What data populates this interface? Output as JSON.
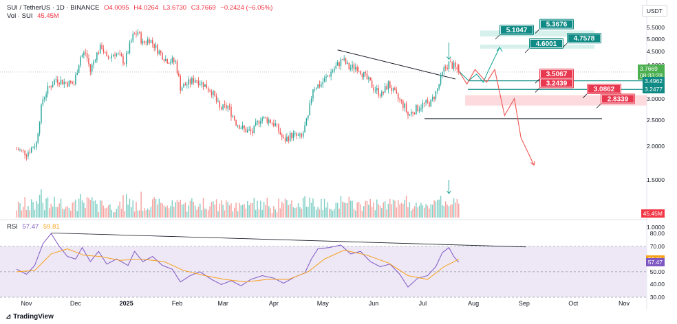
{
  "header": {
    "symbol": "SUI / TetherUS · 1D · BINANCE",
    "open": "O4.0095",
    "high": "H4.0264",
    "low": "L3.6730",
    "close": "C3.7669",
    "change": "−0.2424 (−6.05%)",
    "vol_label": "Vol · SUI",
    "vol_value": "45.45M"
  },
  "currency_button": "USDT",
  "rsi_header": {
    "label": "RSI",
    "rsi": "57.47",
    "ma": "59.81"
  },
  "branding": "TradingView",
  "colors": {
    "up": "#26a69a",
    "down": "#ef5350",
    "rsi": "#7e57c2",
    "rsi_ma": "#f7a21b",
    "target": "#0f8a84",
    "stop": "#e8384f"
  },
  "chart_data": [
    {
      "type": "candlestick",
      "title": "SUI / TetherUS · 1D · BINANCE",
      "y_scale": "log",
      "ylim": [
        1.2,
        6.2
      ],
      "y_ticks": [
        "5.5000",
        "5.0000",
        "4.5000",
        "4.0000",
        "3.5000",
        "3.0000",
        "2.5000",
        "2.0000",
        "1.5000",
        "1.0000"
      ],
      "x_ticks": [
        "Nov",
        "Dec",
        "2025",
        "Feb",
        "Mar",
        "Apr",
        "May",
        "Jun",
        "Jul",
        "Aug",
        "Sep",
        "Oct",
        "Nov"
      ],
      "last_price": "3.7669",
      "countdown": "08:33:28",
      "close_path": [
        [
          "2024-10-26",
          1.95
        ],
        [
          "2024-11-01",
          1.88
        ],
        [
          "2024-11-07",
          2.05
        ],
        [
          "2024-11-11",
          3.0
        ],
        [
          "2024-11-14",
          3.25
        ],
        [
          "2024-11-19",
          3.55
        ],
        [
          "2024-11-24",
          3.45
        ],
        [
          "2024-11-30",
          3.4
        ],
        [
          "2024-12-04",
          4.3
        ],
        [
          "2024-12-07",
          4.45
        ],
        [
          "2024-12-10",
          3.8
        ],
        [
          "2024-12-13",
          4.3
        ],
        [
          "2024-12-17",
          4.7
        ],
        [
          "2024-12-20",
          4.2
        ],
        [
          "2024-12-25",
          4.45
        ],
        [
          "2024-12-31",
          4.1
        ],
        [
          "2025-01-05",
          5.1
        ],
        [
          "2025-01-08",
          5.3
        ],
        [
          "2025-01-11",
          4.8
        ],
        [
          "2025-01-15",
          5.0
        ],
        [
          "2025-01-20",
          4.55
        ],
        [
          "2025-01-25",
          4.2
        ],
        [
          "2025-01-31",
          4.1
        ],
        [
          "2025-02-03",
          3.3
        ],
        [
          "2025-02-07",
          3.4
        ],
        [
          "2025-02-12",
          3.55
        ],
        [
          "2025-02-17",
          3.4
        ],
        [
          "2025-02-22",
          3.2
        ],
        [
          "2025-02-27",
          2.75
        ],
        [
          "2025-03-04",
          2.8
        ],
        [
          "2025-03-09",
          2.45
        ],
        [
          "2025-03-14",
          2.3
        ],
        [
          "2025-03-19",
          2.25
        ],
        [
          "2025-03-24",
          2.55
        ],
        [
          "2025-03-29",
          2.5
        ],
        [
          "2025-04-02",
          2.4
        ],
        [
          "2025-04-07",
          2.1
        ],
        [
          "2025-04-12",
          2.2
        ],
        [
          "2025-04-18",
          2.15
        ],
        [
          "2025-04-22",
          2.55
        ],
        [
          "2025-04-25",
          3.3
        ],
        [
          "2025-04-30",
          3.4
        ],
        [
          "2025-05-05",
          3.7
        ],
        [
          "2025-05-10",
          4.0
        ],
        [
          "2025-05-13",
          4.2
        ],
        [
          "2025-05-17",
          3.9
        ],
        [
          "2025-05-22",
          3.95
        ],
        [
          "2025-05-27",
          3.6
        ],
        [
          "2025-06-01",
          3.3
        ],
        [
          "2025-06-06",
          3.1
        ],
        [
          "2025-06-10",
          3.4
        ],
        [
          "2025-06-15",
          3.05
        ],
        [
          "2025-06-20",
          2.8
        ],
        [
          "2025-06-22",
          2.6
        ],
        [
          "2025-06-27",
          2.75
        ],
        [
          "2025-07-01",
          2.85
        ],
        [
          "2025-07-06",
          2.9
        ],
        [
          "2025-07-10",
          3.25
        ],
        [
          "2025-07-14",
          3.85
        ],
        [
          "2025-07-17",
          4.05
        ],
        [
          "2025-07-20",
          3.95
        ],
        [
          "2025-07-23",
          3.7669
        ]
      ],
      "levels": [
        "5.1047",
        "5.3676",
        "4.6001",
        "4.7578",
        "3.5067",
        "3.2439",
        "3.0862",
        "2.8339"
      ],
      "axis_badges": [
        {
          "value": "3.7669",
          "sub": "08:33:28",
          "color": "#4caf50"
        },
        {
          "value": "3.4962",
          "color": "#0f8a84"
        },
        {
          "value": "3.2477",
          "color": "#0f8a84"
        }
      ],
      "support_line": 2.53,
      "projection_up": [
        [
          "2025-07-23",
          3.8
        ],
        [
          "2025-07-29",
          3.5
        ],
        [
          "2025-08-03",
          3.7
        ],
        [
          "2025-08-07",
          3.45
        ],
        [
          "2025-08-10",
          3.8
        ],
        [
          "2025-08-17",
          4.65
        ]
      ],
      "projection_down": [
        [
          "2025-07-23",
          3.8
        ],
        [
          "2025-07-28",
          3.4
        ],
        [
          "2025-08-02",
          3.85
        ],
        [
          "2025-08-09",
          3.45
        ],
        [
          "2025-08-14",
          3.85
        ],
        [
          "2025-08-20",
          2.6
        ],
        [
          "2025-08-26",
          3.0
        ],
        [
          "2025-08-30",
          2.15
        ],
        [
          "2025-09-07",
          1.7
        ]
      ]
    },
    {
      "type": "bar",
      "title": "Vol · SUI",
      "value_label": "45.45M"
    },
    {
      "type": "line",
      "title": "RSI",
      "ylim": [
        30,
        85
      ],
      "y_ticks": [
        "80.00",
        "70.00",
        "60.00",
        "50.00",
        "40.00",
        "30.00"
      ],
      "series": [
        {
          "name": "RSI",
          "value": "57.47"
        },
        {
          "name": "RSI MA",
          "value": "59.81"
        }
      ],
      "rsi_path": [
        [
          "2024-10-26",
          52
        ],
        [
          "2024-11-01",
          48
        ],
        [
          "2024-11-06",
          55
        ],
        [
          "2024-11-11",
          72
        ],
        [
          "2024-11-16",
          80
        ],
        [
          "2024-11-21",
          70
        ],
        [
          "2024-11-26",
          62
        ],
        [
          "2024-12-01",
          60
        ],
        [
          "2024-12-05",
          69
        ],
        [
          "2024-12-10",
          58
        ],
        [
          "2024-12-15",
          66
        ],
        [
          "2024-12-20",
          56
        ],
        [
          "2024-12-26",
          60
        ],
        [
          "2025-01-02",
          55
        ],
        [
          "2025-01-06",
          66
        ],
        [
          "2025-01-11",
          58
        ],
        [
          "2025-01-17",
          62
        ],
        [
          "2025-01-23",
          55
        ],
        [
          "2025-01-29",
          52
        ],
        [
          "2025-02-03",
          42
        ],
        [
          "2025-02-09",
          47
        ],
        [
          "2025-02-15",
          50
        ],
        [
          "2025-02-22",
          44
        ],
        [
          "2025-02-28",
          40
        ],
        [
          "2025-03-06",
          43
        ],
        [
          "2025-03-12",
          39
        ],
        [
          "2025-03-18",
          44
        ],
        [
          "2025-03-25",
          47
        ],
        [
          "2025-04-01",
          45
        ],
        [
          "2025-04-07",
          41
        ],
        [
          "2025-04-14",
          46
        ],
        [
          "2025-04-20",
          49
        ],
        [
          "2025-04-24",
          60
        ],
        [
          "2025-04-28",
          68
        ],
        [
          "2025-05-05",
          69
        ],
        [
          "2025-05-12",
          71
        ],
        [
          "2025-05-18",
          64
        ],
        [
          "2025-05-24",
          66
        ],
        [
          "2025-05-30",
          58
        ],
        [
          "2025-06-05",
          54
        ],
        [
          "2025-06-11",
          56
        ],
        [
          "2025-06-17",
          48
        ],
        [
          "2025-06-22",
          38
        ],
        [
          "2025-06-28",
          45
        ],
        [
          "2025-07-04",
          47
        ],
        [
          "2025-07-09",
          54
        ],
        [
          "2025-07-13",
          65
        ],
        [
          "2025-07-17",
          69
        ],
        [
          "2025-07-20",
          62
        ],
        [
          "2025-07-23",
          57.47
        ]
      ],
      "ma_path": [
        [
          "2024-10-26",
          50
        ],
        [
          "2024-11-06",
          51
        ],
        [
          "2024-11-16",
          64
        ],
        [
          "2024-11-26",
          68
        ],
        [
          "2024-12-06",
          63
        ],
        [
          "2024-12-16",
          62
        ],
        [
          "2024-12-28",
          59
        ],
        [
          "2025-01-10",
          60
        ],
        [
          "2025-01-24",
          58
        ],
        [
          "2025-02-05",
          51
        ],
        [
          "2025-02-18",
          47
        ],
        [
          "2025-03-02",
          44
        ],
        [
          "2025-03-15",
          42
        ],
        [
          "2025-03-28",
          44
        ],
        [
          "2025-04-10",
          44
        ],
        [
          "2025-04-22",
          50
        ],
        [
          "2025-05-02",
          60
        ],
        [
          "2025-05-14",
          67
        ],
        [
          "2025-05-28",
          63
        ],
        [
          "2025-06-10",
          57
        ],
        [
          "2025-06-22",
          47
        ],
        [
          "2025-07-04",
          44
        ],
        [
          "2025-07-14",
          54
        ],
        [
          "2025-07-23",
          59.81
        ]
      ],
      "divergence_line": [
        [
          "2024-11-16",
          80.5
        ],
        [
          "2025-09-02",
          69.5
        ]
      ]
    }
  ]
}
